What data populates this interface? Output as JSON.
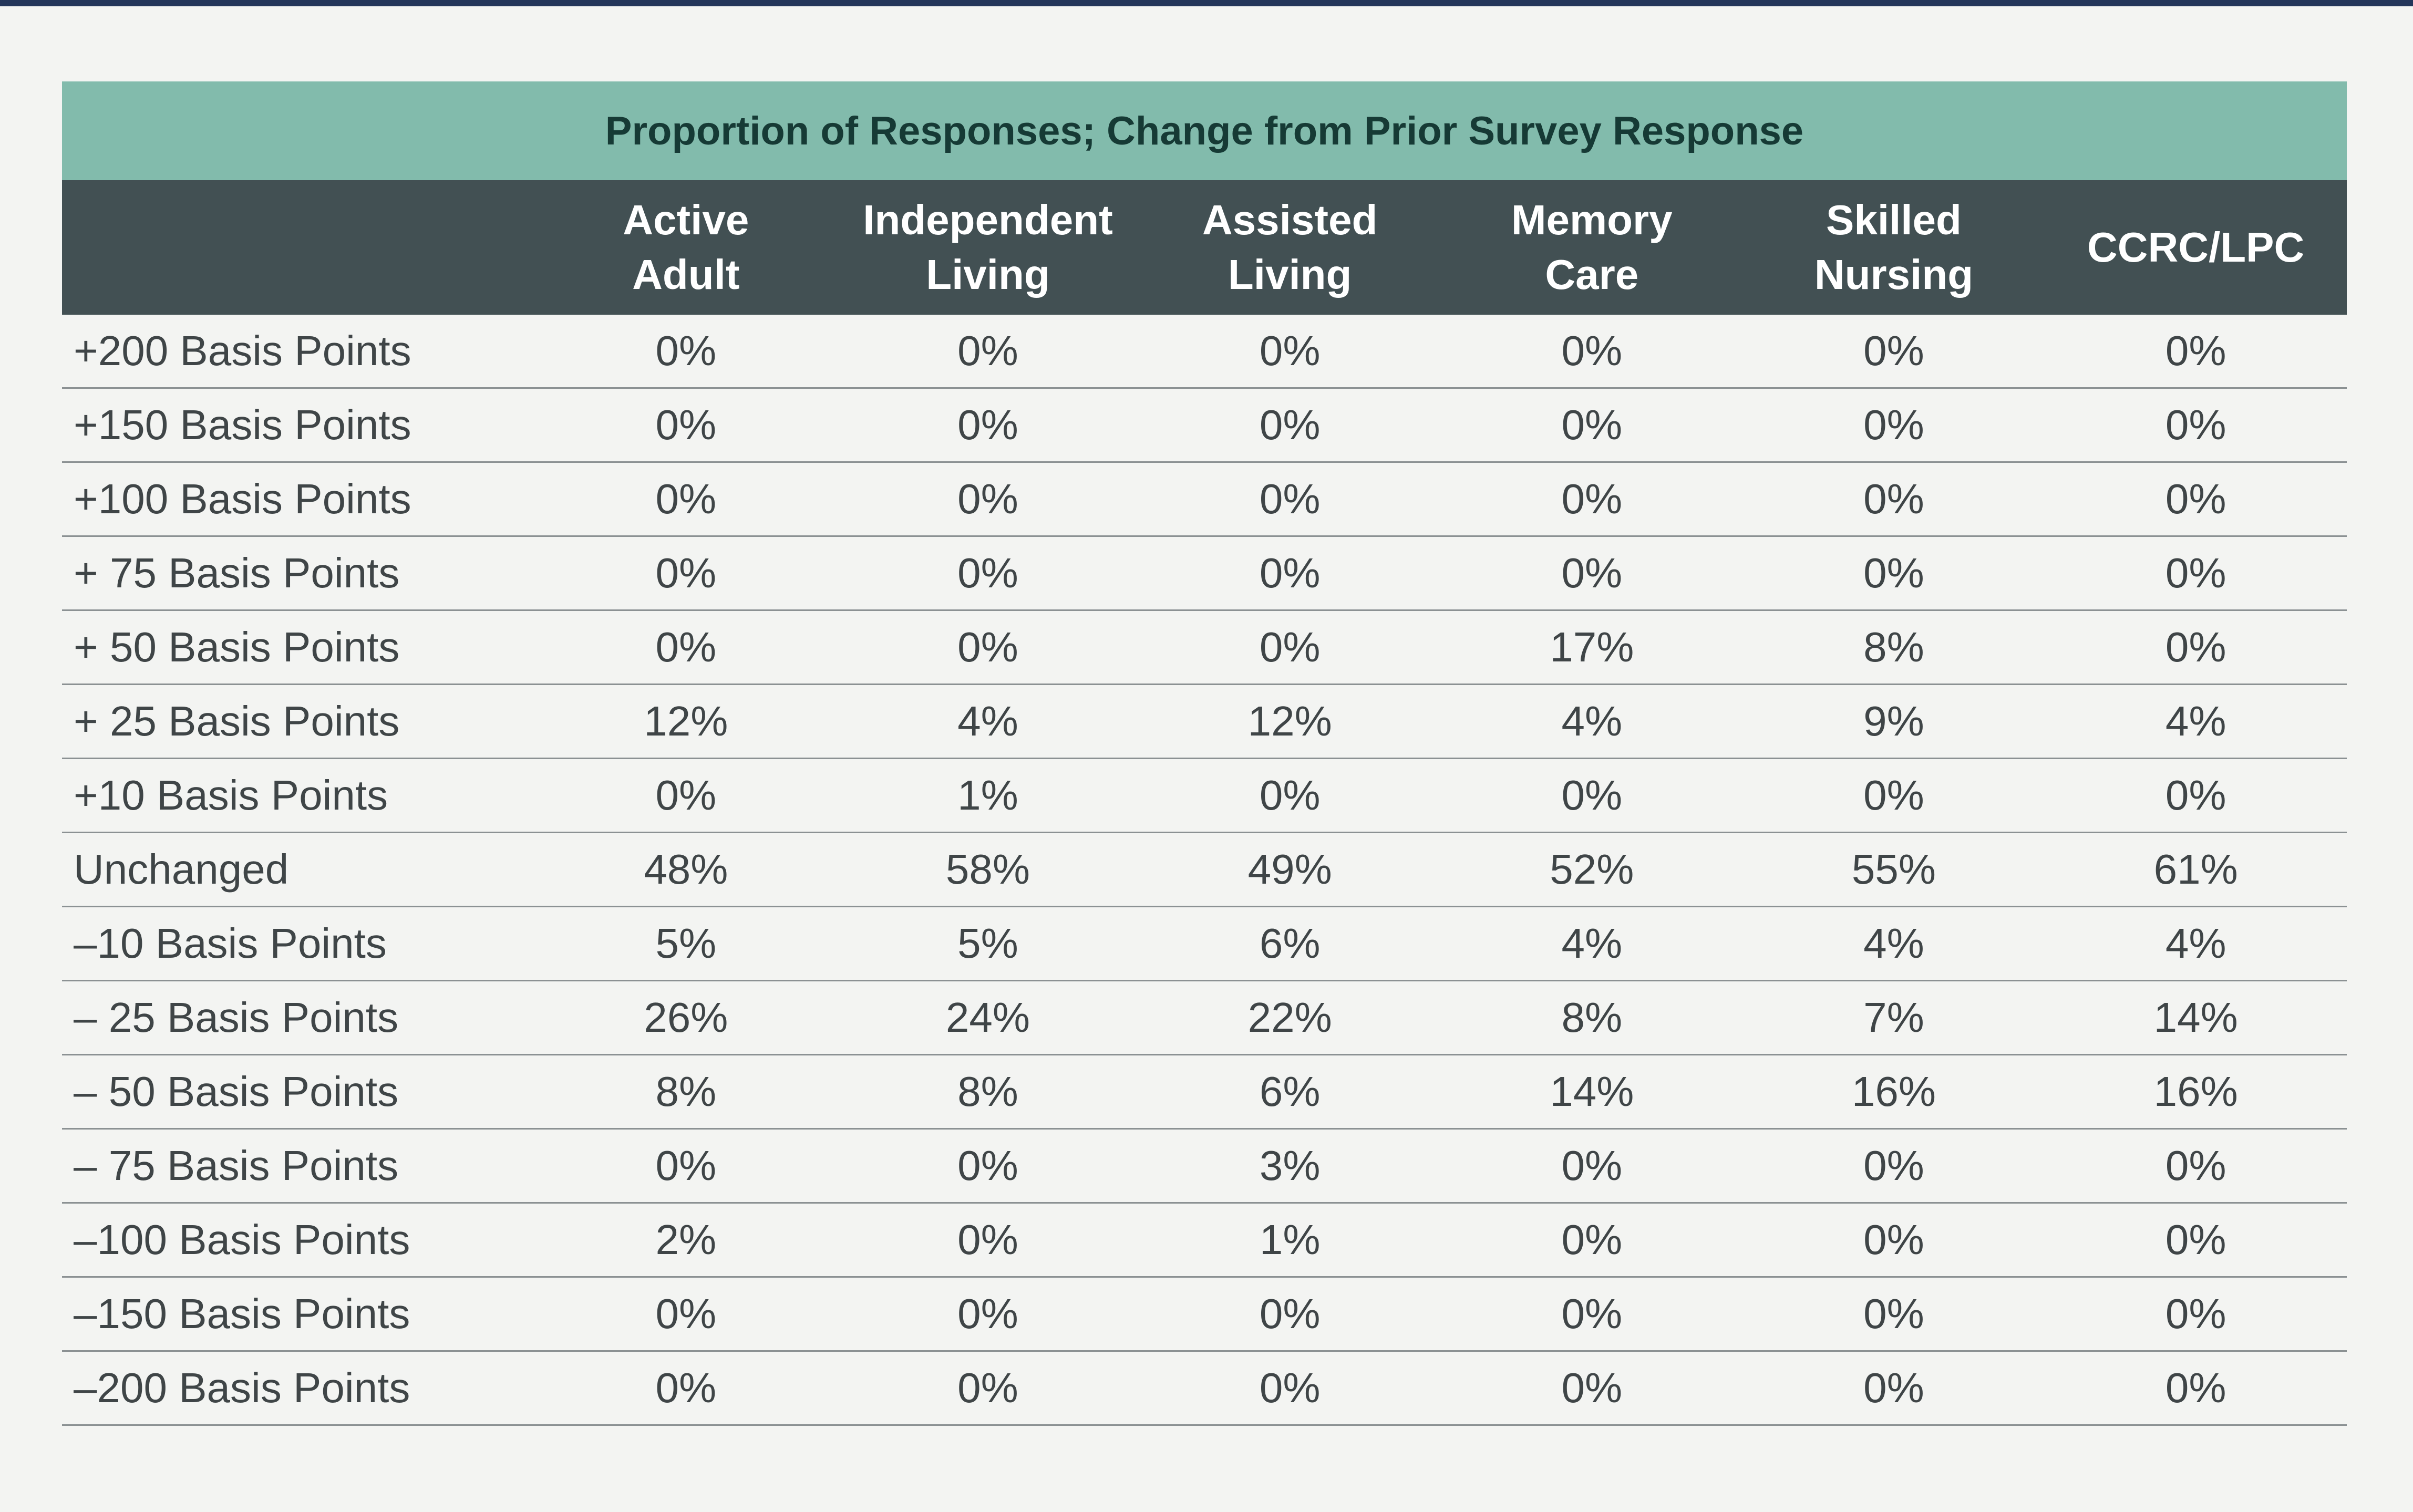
{
  "chart_data": {
    "type": "table",
    "title": "Proportion of Responses; Change from Prior Survey Response",
    "columns": [
      {
        "line1": "Active",
        "line2": "Adult"
      },
      {
        "line1": "Independent",
        "line2": "Living"
      },
      {
        "line1": "Assisted",
        "line2": "Living"
      },
      {
        "line1": "Memory",
        "line2": "Care"
      },
      {
        "line1": "Skilled",
        "line2": "Nursing"
      },
      {
        "line1": "CCRC/LPC",
        "line2": ""
      }
    ],
    "rows": [
      {
        "label": "+200 Basis Points",
        "values": [
          "0%",
          "0%",
          "0%",
          "0%",
          "0%",
          "0%"
        ]
      },
      {
        "label": "+150 Basis Points",
        "values": [
          "0%",
          "0%",
          "0%",
          "0%",
          "0%",
          "0%"
        ]
      },
      {
        "label": "+100 Basis Points",
        "values": [
          "0%",
          "0%",
          "0%",
          "0%",
          "0%",
          "0%"
        ]
      },
      {
        "label": "+ 75 Basis Points",
        "values": [
          "0%",
          "0%",
          "0%",
          "0%",
          "0%",
          "0%"
        ]
      },
      {
        "label": "+ 50 Basis Points",
        "values": [
          "0%",
          "0%",
          "0%",
          "17%",
          "8%",
          "0%"
        ]
      },
      {
        "label": "+ 25 Basis Points",
        "values": [
          "12%",
          "4%",
          "12%",
          "4%",
          "9%",
          "4%"
        ]
      },
      {
        "label": "+10 Basis Points",
        "values": [
          "0%",
          "1%",
          "0%",
          "0%",
          "0%",
          "0%"
        ]
      },
      {
        "label": "Unchanged",
        "values": [
          "48%",
          "58%",
          "49%",
          "52%",
          "55%",
          "61%"
        ]
      },
      {
        "label": "–10 Basis Points",
        "values": [
          "5%",
          "5%",
          "6%",
          "4%",
          "4%",
          "4%"
        ]
      },
      {
        "label": "– 25 Basis Points",
        "values": [
          "26%",
          "24%",
          "22%",
          "8%",
          "7%",
          "14%"
        ]
      },
      {
        "label": "– 50 Basis Points",
        "values": [
          "8%",
          "8%",
          "6%",
          "14%",
          "16%",
          "16%"
        ]
      },
      {
        "label": "– 75 Basis Points",
        "values": [
          "0%",
          "0%",
          "3%",
          "0%",
          "0%",
          "0%"
        ]
      },
      {
        "label": "–100 Basis Points",
        "values": [
          "2%",
          "0%",
          "1%",
          "0%",
          "0%",
          "0%"
        ]
      },
      {
        "label": "–150 Basis Points",
        "values": [
          "0%",
          "0%",
          "0%",
          "0%",
          "0%",
          "0%"
        ]
      },
      {
        "label": "–200 Basis Points",
        "values": [
          "0%",
          "0%",
          "0%",
          "0%",
          "0%",
          "0%"
        ]
      }
    ]
  },
  "colors": {
    "page_background": "#f3f4f2",
    "top_rule": "#23365a",
    "title_band": "#82bbac",
    "title_text": "#163a35",
    "header_band": "#425053",
    "header_text": "#ffffff",
    "cell_text": "#3f4547",
    "row_divider": "#8b9193"
  }
}
